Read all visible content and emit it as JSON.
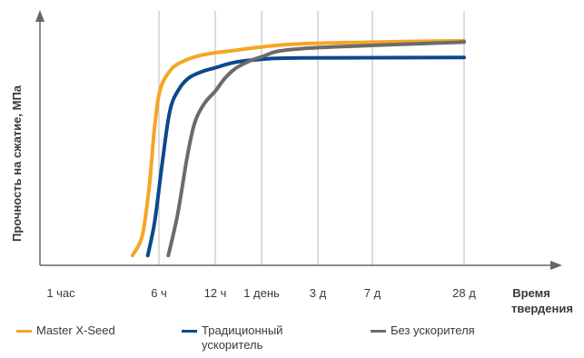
{
  "chart_data": {
    "type": "line",
    "ylabel": "Прочность на сжатие, МПа",
    "xlabel_line1": "Время",
    "xlabel_line2": "твердения",
    "x_ticks": [
      "1 час",
      "6 ч",
      "12 ч",
      "1 день",
      "3 д",
      "7 д",
      "28 д"
    ],
    "gridlines": [
      "6 ч",
      "12 ч",
      "1 день",
      "3 д",
      "7 д",
      "28 д"
    ],
    "y_ticks_shown": false,
    "series": [
      {
        "name": "Master X-Seed",
        "color": "#f5a623",
        "points": [
          [
            3.45,
            0.04
          ],
          [
            3.8,
            0.12
          ],
          [
            4.05,
            0.32
          ],
          [
            4.25,
            0.57
          ],
          [
            4.45,
            0.72
          ],
          [
            4.8,
            0.8
          ],
          [
            5.2,
            0.833
          ],
          [
            5.8,
            0.853
          ],
          [
            6.5,
            0.865
          ],
          [
            7.5,
            0.878
          ],
          [
            8.5,
            0.89
          ],
          [
            9.5,
            0.903
          ],
          [
            10.2,
            0.912
          ],
          [
            10.5,
            0.915
          ]
        ]
      },
      {
        "name": "Традиционный ускоритель",
        "color": "#0a4a8c",
        "points": [
          [
            4.0,
            0.04
          ],
          [
            4.25,
            0.18
          ],
          [
            4.5,
            0.41
          ],
          [
            4.75,
            0.63
          ],
          [
            5.05,
            0.72
          ],
          [
            5.4,
            0.765
          ],
          [
            6.0,
            0.79
          ],
          [
            6.6,
            0.805
          ],
          [
            7.0,
            0.818
          ],
          [
            7.5,
            0.83
          ],
          [
            8.5,
            0.84
          ],
          [
            9.5,
            0.845
          ],
          [
            10.5,
            0.847
          ]
        ]
      },
      {
        "name": "Без ускорителя",
        "color": "#6b6b6b",
        "points": [
          [
            4.7,
            0.04
          ],
          [
            5.0,
            0.21
          ],
          [
            5.3,
            0.44
          ],
          [
            5.65,
            0.58
          ],
          [
            6.1,
            0.66
          ],
          [
            6.6,
            0.71
          ],
          [
            7.0,
            0.765
          ],
          [
            7.5,
            0.81
          ],
          [
            8.5,
            0.85
          ],
          [
            9.5,
            0.883
          ],
          [
            10.5,
            0.91
          ]
        ]
      }
    ]
  },
  "legend": [
    {
      "label_lines": [
        "Master X-Seed"
      ],
      "color": "#f5a623"
    },
    {
      "label_lines": [
        "Традиционный",
        "ускоритель"
      ],
      "color": "#0a4a8c"
    },
    {
      "label_lines": [
        "Без ускорителя"
      ],
      "color": "#6b6b6b"
    }
  ]
}
